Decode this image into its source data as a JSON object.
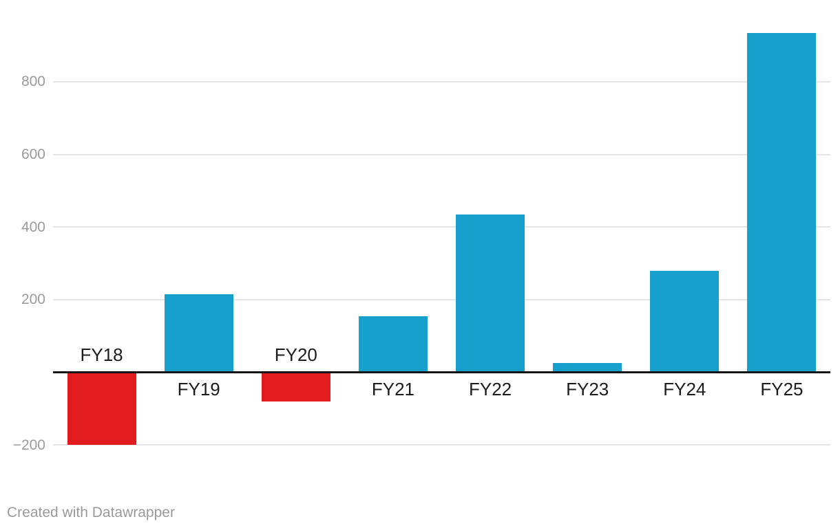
{
  "chart_data": {
    "type": "bar",
    "title": "",
    "xlabel": "",
    "ylabel": "",
    "categories": [
      "FY18",
      "FY19",
      "FY20",
      "FY21",
      "FY22",
      "FY23",
      "FY24",
      "FY25"
    ],
    "values": [
      -200,
      215,
      -80,
      155,
      435,
      25,
      280,
      935
    ],
    "yticks": [
      {
        "value": 800,
        "label": "800"
      },
      {
        "value": 600,
        "label": "600"
      },
      {
        "value": 400,
        "label": "400"
      },
      {
        "value": 200,
        "label": "200"
      },
      {
        "value": -200,
        "label": "−200"
      }
    ],
    "ylim": [
      -260,
      1000
    ],
    "grid": true,
    "legend": "none",
    "colors": {
      "positive": "#18a0cc",
      "negative": "#e11b1e",
      "gridline": "#e5e5e5",
      "axis_line": "#141414",
      "tick_label": "#9b9b9b",
      "category_label": "#1c1c1c"
    }
  },
  "footer": {
    "attribution": "Created with Datawrapper"
  }
}
